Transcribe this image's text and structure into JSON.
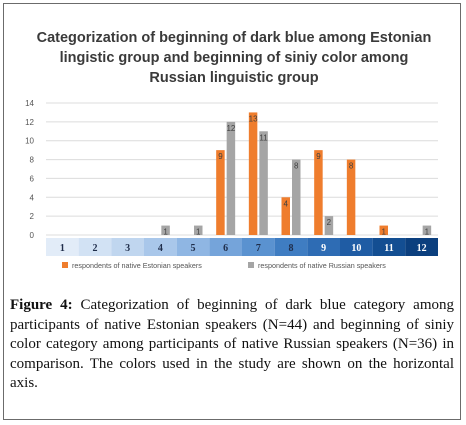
{
  "chart_data": {
    "type": "bar",
    "title": "Categorization of beginning of dark blue among Estonian lingistic group and beginning of siniy color among Russian linguistic group",
    "categories": [
      "1",
      "2",
      "3",
      "4",
      "5",
      "6",
      "7",
      "8",
      "9",
      "10",
      "11",
      "12"
    ],
    "series": [
      {
        "name": "respondents of native Estonian speakers",
        "values": [
          0,
          0,
          0,
          0,
          0,
          9,
          13,
          4,
          9,
          8,
          1,
          0
        ],
        "color": "#ef7d2d"
      },
      {
        "name": "respondents of native Russian speakers",
        "values": [
          0,
          0,
          0,
          1,
          1,
          12,
          11,
          8,
          2,
          0,
          0,
          1
        ],
        "color": "#a5a5a5"
      }
    ],
    "ylim": [
      0,
      14
    ],
    "yticks": [
      0,
      2,
      4,
      6,
      8,
      10,
      12,
      14
    ],
    "grid": true,
    "legend": "bottom",
    "axis_colors": [
      "#e2ecf8",
      "#d2e2f4",
      "#c0d6ef",
      "#a9c7ea",
      "#8fb6e3",
      "#75a4da",
      "#5a92d0",
      "#3f7dc2",
      "#2e6cb4",
      "#1f5ca4",
      "#134e92",
      "#0b3f7e"
    ]
  },
  "caption": {
    "label": "Figure 4:",
    "text": " Categorization of beginning of dark blue category among participants of native Estonian speakers (N=44) and beginning of siniy color category among participants of native Russian speakers (N=36) in comparison. The colors used in the study are shown on the horizontal axis."
  }
}
